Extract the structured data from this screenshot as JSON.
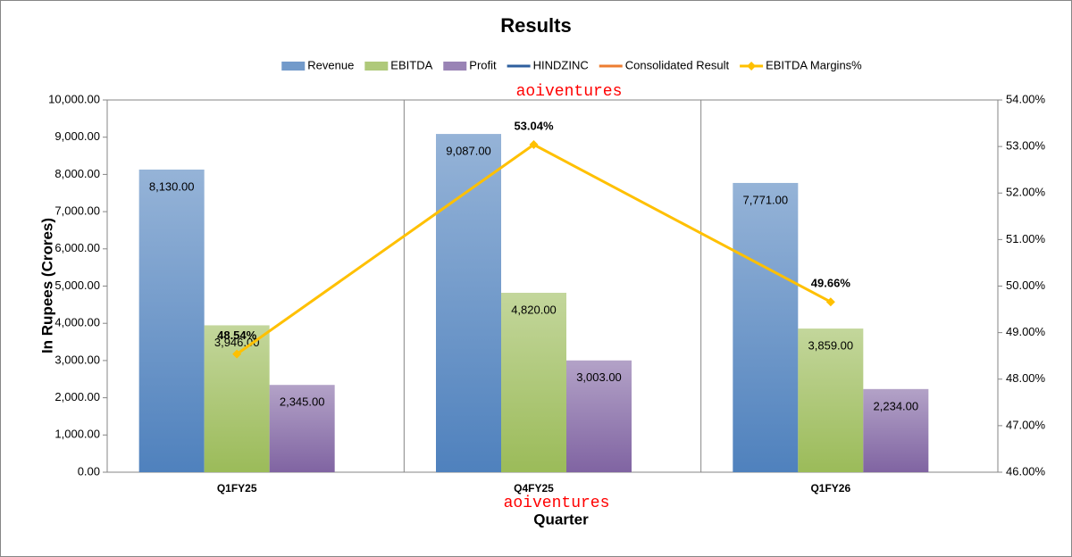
{
  "chart_data": {
    "type": "bar",
    "title": "Results",
    "categories": [
      "Q1FY25",
      "Q4FY25",
      "Q1FY26"
    ],
    "series": [
      {
        "name": "Revenue",
        "type": "bar",
        "color": "#4f81bd",
        "values": [
          8130,
          9087,
          7771
        ],
        "value_labels": [
          "8,130.00",
          "9,087.00",
          "7,771.00"
        ]
      },
      {
        "name": "EBITDA",
        "type": "bar",
        "color": "#9bbb59",
        "values": [
          3946,
          4820,
          3859
        ],
        "value_labels": [
          "3,946.00",
          "4,820.00",
          "3,859.00"
        ]
      },
      {
        "name": "Profit",
        "type": "bar",
        "color": "#8064a2",
        "values": [
          2345,
          3003,
          2234
        ],
        "value_labels": [
          "2,345.00",
          "3,003.00",
          "2,234.00"
        ]
      },
      {
        "name": "HINDZINC",
        "type": "line",
        "color": "#2e5f9e",
        "values": [
          null,
          null,
          null
        ]
      },
      {
        "name": "Consolidated Result",
        "type": "line",
        "color": "#ed7d31",
        "values": [
          null,
          null,
          null
        ]
      },
      {
        "name": "EBITDA Margins%",
        "type": "line",
        "axis": "y2",
        "color": "#ffc000",
        "values": [
          48.54,
          53.04,
          49.66
        ],
        "value_labels": [
          "48.54%",
          "53.04%",
          "49.66%"
        ]
      }
    ],
    "ylabel": "In Rupees (Crores)",
    "xlabel": "Quarter",
    "ylim": [
      0,
      10000
    ],
    "yticks": [
      {
        "value": 0,
        "label": "0.00"
      },
      {
        "value": 1000,
        "label": "1,000.00"
      },
      {
        "value": 2000,
        "label": "2,000.00"
      },
      {
        "value": 3000,
        "label": "3,000.00"
      },
      {
        "value": 4000,
        "label": "4,000.00"
      },
      {
        "value": 5000,
        "label": "5,000.00"
      },
      {
        "value": 6000,
        "label": "6,000.00"
      },
      {
        "value": 7000,
        "label": "7,000.00"
      },
      {
        "value": 8000,
        "label": "8,000.00"
      },
      {
        "value": 9000,
        "label": "9,000.00"
      },
      {
        "value": 10000,
        "label": "10,000.00"
      }
    ],
    "y2lim": [
      46,
      54
    ],
    "y2ticks": [
      {
        "value": 46,
        "label": "46.00%"
      },
      {
        "value": 47,
        "label": "47.00%"
      },
      {
        "value": 48,
        "label": "48.00%"
      },
      {
        "value": 49,
        "label": "49.00%"
      },
      {
        "value": 50,
        "label": "50.00%"
      },
      {
        "value": 51,
        "label": "51.00%"
      },
      {
        "value": 52,
        "label": "52.00%"
      },
      {
        "value": 53,
        "label": "53.00%"
      },
      {
        "value": 54,
        "label": "54.00%"
      }
    ],
    "legend": "top",
    "annotations": [
      "aoiventures",
      "aoiventures"
    ]
  }
}
